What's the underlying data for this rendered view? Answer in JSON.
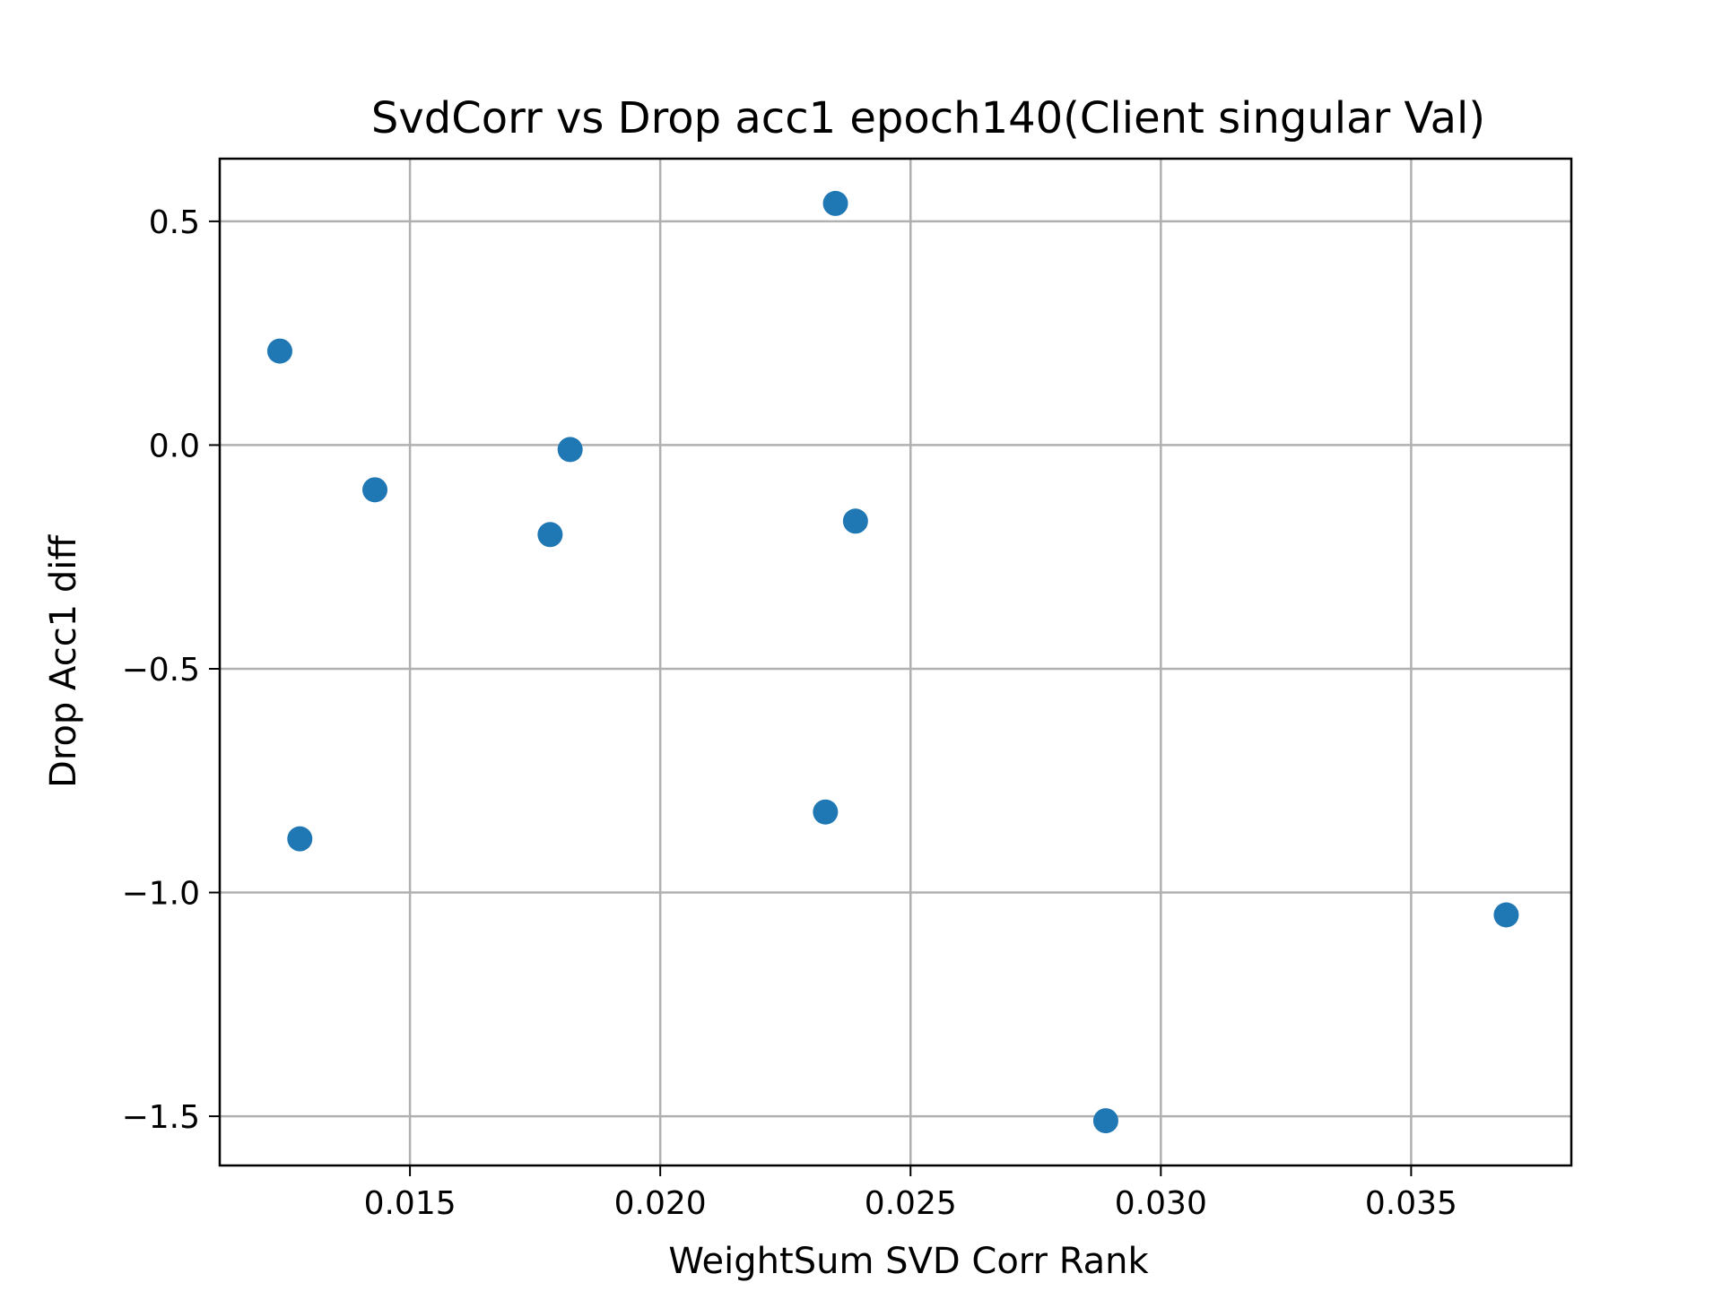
{
  "chart_data": {
    "type": "scatter",
    "title": "SvdCorr vs Drop acc1 epoch140(Client singular Val)",
    "xlabel": "WeightSum SVD Corr Rank",
    "ylabel": "Drop Acc1 diff",
    "xlim": [
      0.0112,
      0.0382
    ],
    "ylim": [
      -1.61,
      0.64
    ],
    "x_ticks": [
      0.015,
      0.02,
      0.025,
      0.03,
      0.035
    ],
    "x_tick_labels": [
      "0.015",
      "0.020",
      "0.025",
      "0.030",
      "0.035"
    ],
    "y_ticks": [
      0.5,
      0.0,
      -0.5,
      -1.0,
      -1.5
    ],
    "y_tick_labels": [
      "0.5",
      "0.0",
      "−0.5",
      "−1.0",
      "−1.5"
    ],
    "grid": true,
    "color": "#1f77b4",
    "points": [
      {
        "x": 0.0124,
        "y": 0.21
      },
      {
        "x": 0.0128,
        "y": -0.88
      },
      {
        "x": 0.0143,
        "y": -0.1
      },
      {
        "x": 0.0178,
        "y": -0.2
      },
      {
        "x": 0.0182,
        "y": -0.01
      },
      {
        "x": 0.0233,
        "y": -0.82
      },
      {
        "x": 0.0235,
        "y": 0.54
      },
      {
        "x": 0.0239,
        "y": -0.17
      },
      {
        "x": 0.0289,
        "y": -1.51
      },
      {
        "x": 0.0369,
        "y": -1.05
      }
    ]
  }
}
